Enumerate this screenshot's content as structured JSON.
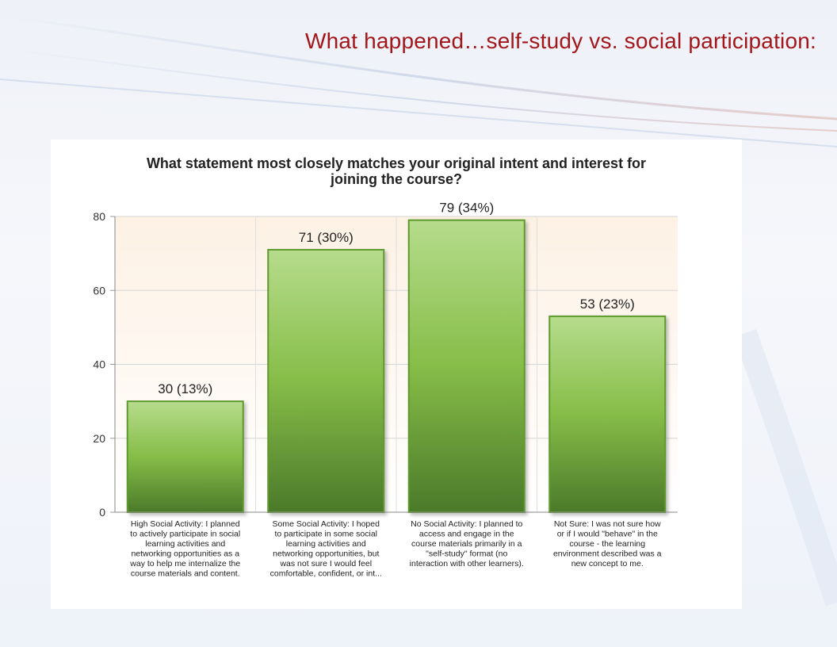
{
  "slide": {
    "title": "What happened…self-study vs. social participation:"
  },
  "colors": {
    "title": "#a3161a",
    "bar_top": "#b6dc8c",
    "bar_mid": "#86bd48",
    "bar_bottom": "#4b7a2a",
    "bar_border": "#5f9a2f",
    "plot_bg_top": "#fdf1e4"
  },
  "chart_data": {
    "type": "bar",
    "title": "What statement most closely matches your original intent and interest for joining the course?",
    "categories": [
      "High Social Activity: I planned to actively participate in social learning activities and networking opportunities as a way to help me internalize the course materials and content.",
      "Some Social Activity: I hoped to participate in some social learning activities and networking opportunities, but was not sure I would feel comfortable, confident, or int...",
      "No Social Activity: I planned to access and engage in the course materials primarily in a \"self-study\" format (no interaction with other learners).",
      "Not Sure: I was not sure how or if I would \"behave\" in the course - the learning environment described was a new concept to me."
    ],
    "category_lines": [
      [
        "High Social Activity: I planned",
        "to actively participate in social",
        "learning activities and",
        "networking opportunities as a",
        "way to help me internalize the",
        "course materials and content."
      ],
      [
        "Some Social Activity: I hoped",
        "to participate in some social",
        "learning activities and",
        "networking opportunities, but",
        "was not sure I would feel",
        "comfortable, confident, or int..."
      ],
      [
        "No Social Activity: I planned to",
        "access and engage in the",
        "course materials primarily in a",
        "\"self-study\" format (no",
        "interaction with other learners)."
      ],
      [
        "Not Sure: I was not sure how",
        "or if I would \"behave\" in the",
        "course - the learning",
        "environment described was a",
        "new concept to me."
      ]
    ],
    "values": [
      30,
      71,
      79,
      53
    ],
    "data_labels": [
      "30 (13%)",
      "71 (30%)",
      "79 (34%)",
      "53 (23%)"
    ],
    "xlabel": "",
    "ylabel": "",
    "ylim": [
      0,
      80
    ],
    "yticks": [
      "0",
      "20",
      "40",
      "60",
      "80"
    ],
    "grid": true,
    "legend": "none"
  }
}
